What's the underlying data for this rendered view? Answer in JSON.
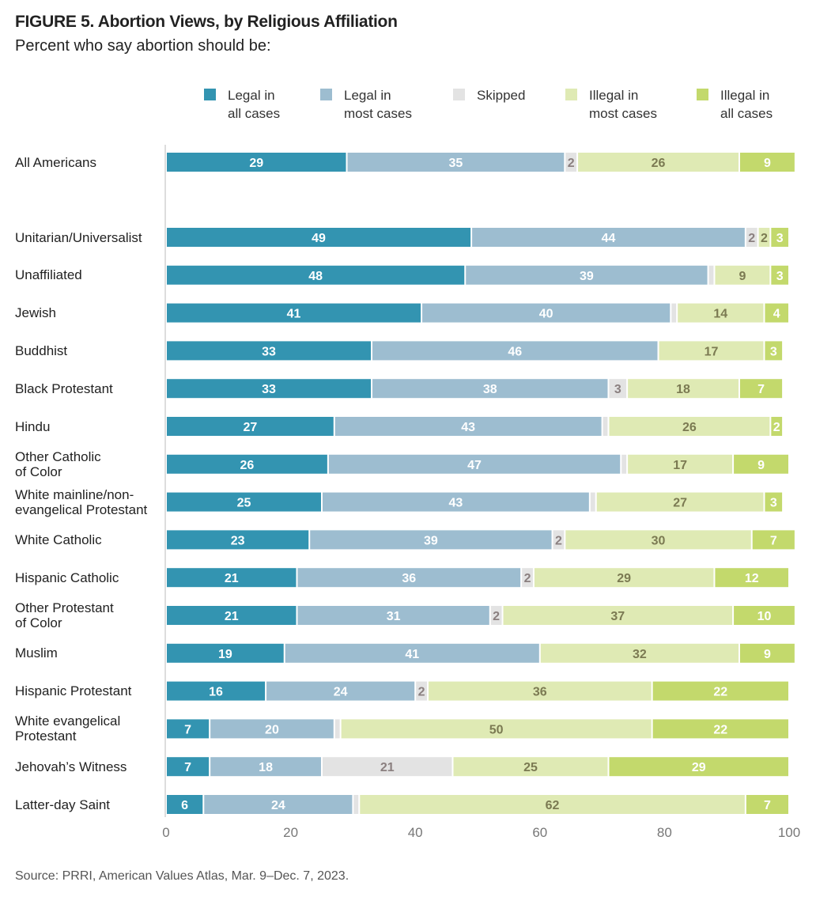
{
  "chart_data": {
    "type": "bar",
    "orientation": "horizontal-stacked",
    "title": "FIGURE 5. Abortion Views, by Religious Affiliation",
    "subtitle": "Percent who say abortion should be:",
    "source": "Source: PRRI, American Values Atlas, Mar. 9–Dec. 7, 2023.",
    "xlim": [
      0,
      100
    ],
    "xticks": [
      "0",
      "20",
      "40",
      "60",
      "80",
      "100"
    ],
    "legend_placement": "top",
    "series": [
      {
        "name": "Legal in all cases",
        "name_lines": [
          "Legal in",
          "all cases"
        ],
        "color": "#3394b1"
      },
      {
        "name": "Legal in most cases",
        "name_lines": [
          "Legal in",
          "most cases"
        ],
        "color": "#9dbdd0"
      },
      {
        "name": "Skipped",
        "name_lines": [
          "Skipped",
          ""
        ],
        "color": "#e3e3e3"
      },
      {
        "name": "Illegal in most cases",
        "name_lines": [
          "Illegal in",
          "most cases"
        ],
        "color": "#dfeab4"
      },
      {
        "name": "Illegal in all cases",
        "name_lines": [
          "Illegal in",
          "all cases"
        ],
        "color": "#c3d96c"
      }
    ],
    "categories": [
      {
        "label": [
          "All Americans"
        ],
        "values": [
          29,
          35,
          2,
          26,
          9
        ],
        "labels": [
          "29",
          "35",
          "2",
          "26",
          "9"
        ]
      },
      {
        "label": [
          "Unitarian/Universalist"
        ],
        "values": [
          49,
          44,
          2,
          2,
          3
        ],
        "labels": [
          "49",
          "44",
          "2",
          "2",
          "3"
        ]
      },
      {
        "label": [
          "Unaffiliated"
        ],
        "values": [
          48,
          39,
          1,
          9,
          3
        ],
        "labels": [
          "48",
          "39",
          "",
          "9",
          "3"
        ]
      },
      {
        "label": [
          "Jewish"
        ],
        "values": [
          41,
          40,
          1,
          14,
          4
        ],
        "labels": [
          "41",
          "40",
          "",
          "14",
          "4"
        ]
      },
      {
        "label": [
          "Buddhist"
        ],
        "values": [
          33,
          46,
          0,
          17,
          3
        ],
        "labels": [
          "33",
          "46",
          "",
          "17",
          "3"
        ]
      },
      {
        "label": [
          "Black Protestant"
        ],
        "values": [
          33,
          38,
          3,
          18,
          7
        ],
        "labels": [
          "33",
          "38",
          "3",
          "18",
          "7"
        ]
      },
      {
        "label": [
          "Hindu"
        ],
        "values": [
          27,
          43,
          1,
          26,
          2
        ],
        "labels": [
          "27",
          "43",
          "",
          "26",
          "2"
        ]
      },
      {
        "label": [
          "Other Catholic",
          "of Color"
        ],
        "values": [
          26,
          47,
          1,
          17,
          9
        ],
        "labels": [
          "26",
          "47",
          "",
          "17",
          "9"
        ]
      },
      {
        "label": [
          "White mainline/non-",
          "evangelical Protestant"
        ],
        "values": [
          25,
          43,
          1,
          27,
          3
        ],
        "labels": [
          "25",
          "43",
          "",
          "27",
          "3"
        ]
      },
      {
        "label": [
          "White Catholic"
        ],
        "values": [
          23,
          39,
          2,
          30,
          7
        ],
        "labels": [
          "23",
          "39",
          "2",
          "30",
          "7"
        ]
      },
      {
        "label": [
          "Hispanic Catholic"
        ],
        "values": [
          21,
          36,
          2,
          29,
          12
        ],
        "labels": [
          "21",
          "36",
          "2",
          "29",
          "12"
        ]
      },
      {
        "label": [
          "Other Protestant",
          "of Color"
        ],
        "values": [
          21,
          31,
          2,
          37,
          10
        ],
        "labels": [
          "21",
          "31",
          "2",
          "37",
          "10"
        ]
      },
      {
        "label": [
          "Muslim"
        ],
        "values": [
          19,
          41,
          0,
          32,
          9
        ],
        "labels": [
          "19",
          "41",
          "",
          "32",
          "9"
        ]
      },
      {
        "label": [
          "Hispanic Protestant"
        ],
        "values": [
          16,
          24,
          2,
          36,
          22
        ],
        "labels": [
          "16",
          "24",
          "2",
          "36",
          "22"
        ]
      },
      {
        "label": [
          "White evangelical",
          "Protestant"
        ],
        "values": [
          7,
          20,
          1,
          50,
          22
        ],
        "labels": [
          "7",
          "20",
          "",
          "50",
          "22"
        ]
      },
      {
        "label": [
          "Jehovah’s Witness"
        ],
        "values": [
          7,
          18,
          21,
          25,
          29
        ],
        "labels": [
          "7",
          "18",
          "21",
          "25",
          "29"
        ]
      },
      {
        "label": [
          "Latter-day Saint"
        ],
        "values": [
          6,
          24,
          1,
          62,
          7
        ],
        "labels": [
          "6",
          "24",
          "",
          "62",
          "7"
        ]
      }
    ]
  }
}
